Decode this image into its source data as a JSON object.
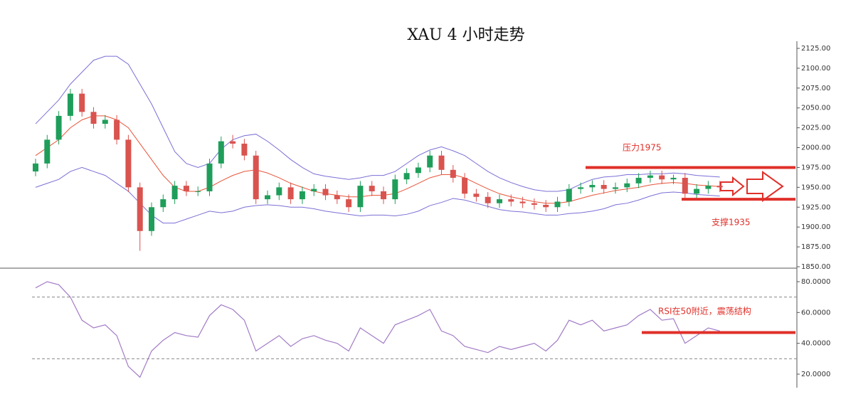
{
  "chart_data": [
    {
      "type": "candlestick",
      "title": "XAU 4 小时走势",
      "up_color": "#1e9e5a",
      "down_color": "#d9534f",
      "open": [
        1970,
        1980,
        2010,
        2040,
        2068,
        2045,
        2030,
        2035,
        2010,
        1950,
        1895,
        1925,
        1935,
        1952,
        1945,
        1945,
        1980,
        2008,
        2005,
        1990,
        1935,
        1940,
        1950,
        1935,
        1945,
        1948,
        1940,
        1935,
        1925,
        1952,
        1945,
        1935,
        1960,
        1968,
        1975,
        1990,
        1972,
        1962,
        1942,
        1938,
        1930,
        1935,
        1932,
        1930,
        1928,
        1925,
        1932,
        1948,
        1950,
        1953,
        1948,
        1950,
        1955,
        1962,
        1965,
        1960,
        1962,
        1942,
        1948,
        1952
      ],
      "high": [
        1986,
        2016,
        2046,
        2074,
        2074,
        2051,
        2041,
        2041,
        2016,
        1956,
        1931,
        1941,
        1958,
        1958,
        1951,
        1986,
        2014,
        2016,
        2011,
        1996,
        1946,
        1956,
        1956,
        1951,
        1954,
        1954,
        1946,
        1941,
        1958,
        1958,
        1951,
        1966,
        1974,
        1981,
        1996,
        1996,
        1978,
        1968,
        1948,
        1944,
        1941,
        1941,
        1938,
        1936,
        1934,
        1938,
        1954,
        1956,
        1959,
        1959,
        1956,
        1961,
        1968,
        1971,
        1971,
        1966,
        1968,
        1954,
        1958,
        1958
      ],
      "low": [
        1964,
        1974,
        2004,
        2034,
        2039,
        2024,
        2024,
        2004,
        1944,
        1870,
        1889,
        1919,
        1929,
        1939,
        1939,
        1939,
        1974,
        1999,
        1984,
        1929,
        1929,
        1934,
        1929,
        1929,
        1939,
        1934,
        1929,
        1919,
        1919,
        1939,
        1929,
        1929,
        1954,
        1962,
        1969,
        1966,
        1956,
        1936,
        1932,
        1924,
        1924,
        1926,
        1924,
        1922,
        1919,
        1919,
        1926,
        1942,
        1944,
        1942,
        1942,
        1944,
        1949,
        1956,
        1954,
        1954,
        1936,
        1936,
        1942,
        1944
      ],
      "close": [
        1980,
        2010,
        2040,
        2068,
        2045,
        2030,
        2035,
        2010,
        1950,
        1895,
        1925,
        1935,
        1952,
        1945,
        1945,
        1980,
        2008,
        2005,
        1990,
        1935,
        1940,
        1950,
        1935,
        1945,
        1948,
        1940,
        1935,
        1925,
        1952,
        1945,
        1935,
        1960,
        1968,
        1975,
        1990,
        1972,
        1962,
        1942,
        1938,
        1930,
        1935,
        1932,
        1930,
        1928,
        1925,
        1932,
        1948,
        1950,
        1953,
        1948,
        1950,
        1955,
        1962,
        1965,
        1960,
        1962,
        1942,
        1948,
        1952,
        1950
      ],
      "series": [
        {
          "color": "#e8553a",
          "values": [
            1990,
            2000,
            2010,
            2025,
            2035,
            2040,
            2040,
            2035,
            2025,
            2005,
            1985,
            1965,
            1950,
            1945,
            1945,
            1950,
            1958,
            1965,
            1970,
            1972,
            1968,
            1962,
            1955,
            1950,
            1945,
            1942,
            1940,
            1938,
            1938,
            1940,
            1940,
            1942,
            1948,
            1955,
            1962,
            1966,
            1966,
            1962,
            1955,
            1948,
            1942,
            1938,
            1935,
            1932,
            1930,
            1930,
            1932,
            1936,
            1940,
            1943,
            1946,
            1948,
            1950,
            1953,
            1955,
            1956,
            1955,
            1953,
            1952,
            1951
          ]
        },
        {
          "color": "#7b6fd6",
          "values": [
            2030,
            2045,
            2060,
            2080,
            2095,
            2110,
            2115,
            2115,
            2105,
            2080,
            2055,
            2025,
            1995,
            1980,
            1975,
            1980,
            1998,
            2010,
            2015,
            2017,
            2008,
            1997,
            1985,
            1975,
            1967,
            1964,
            1962,
            1960,
            1962,
            1965,
            1965,
            1970,
            1980,
            1990,
            1997,
            2001,
            1996,
            1990,
            1980,
            1970,
            1962,
            1956,
            1951,
            1947,
            1945,
            1945,
            1947,
            1954,
            1960,
            1963,
            1964,
            1966,
            1966,
            1967,
            1967,
            1968,
            1967,
            1965,
            1964,
            1963
          ]
        },
        {
          "color": "#7b6fd6",
          "values": [
            1950,
            1955,
            1960,
            1970,
            1975,
            1970,
            1965,
            1955,
            1945,
            1930,
            1915,
            1905,
            1905,
            1910,
            1915,
            1920,
            1918,
            1920,
            1925,
            1927,
            1928,
            1927,
            1925,
            1925,
            1923,
            1920,
            1918,
            1916,
            1914,
            1915,
            1915,
            1914,
            1916,
            1920,
            1927,
            1931,
            1936,
            1934,
            1930,
            1926,
            1922,
            1920,
            1919,
            1917,
            1915,
            1915,
            1917,
            1918,
            1920,
            1923,
            1928,
            1930,
            1934,
            1939,
            1943,
            1944,
            1943,
            1941,
            1940,
            1939
          ]
        }
      ],
      "ylim": [
        1850,
        2125
      ],
      "yticks": [
        {
          "value": 1850,
          "label": "1850.00"
        },
        {
          "value": 1875,
          "label": "1875.00"
        },
        {
          "value": 1900,
          "label": "1900.00"
        },
        {
          "value": 1925,
          "label": "1925.00"
        },
        {
          "value": 1950,
          "label": "1950.00"
        },
        {
          "value": 1975,
          "label": "1975.00"
        },
        {
          "value": 2000,
          "label": "2000.00"
        },
        {
          "value": 2025,
          "label": "2025.00"
        },
        {
          "value": 2050,
          "label": "2050.00"
        },
        {
          "value": 2075,
          "label": "2075.00"
        },
        {
          "value": 2100,
          "label": "2100.00"
        },
        {
          "value": 2125,
          "label": "2125.00"
        }
      ],
      "annotations": [
        {
          "text": "压力1975",
          "value": 1975
        },
        {
          "text": "支撑1935",
          "value": 1935
        }
      ]
    },
    {
      "type": "line",
      "color": "#a27bc6",
      "values": [
        76,
        80,
        78,
        70,
        55,
        50,
        52,
        45,
        25,
        18,
        35,
        42,
        47,
        45,
        44,
        58,
        65,
        62,
        55,
        35,
        40,
        45,
        38,
        43,
        45,
        42,
        40,
        35,
        50,
        45,
        40,
        52,
        55,
        58,
        62,
        48,
        45,
        38,
        36,
        34,
        38,
        36,
        38,
        40,
        35,
        42,
        55,
        52,
        55,
        48,
        50,
        52,
        58,
        62,
        55,
        56,
        40,
        45,
        50,
        48
      ],
      "ylim": [
        15,
        82
      ],
      "yticks": [
        {
          "value": 20,
          "label": "20.0000"
        },
        {
          "value": 40,
          "label": "40.0000"
        },
        {
          "value": 60,
          "label": "60.0000"
        },
        {
          "value": 80,
          "label": "80.0000"
        }
      ],
      "hlines": [
        70,
        30
      ],
      "annotations": [
        {
          "text": "RSI在50附近，震荡结构",
          "value": 47
        }
      ]
    }
  ]
}
